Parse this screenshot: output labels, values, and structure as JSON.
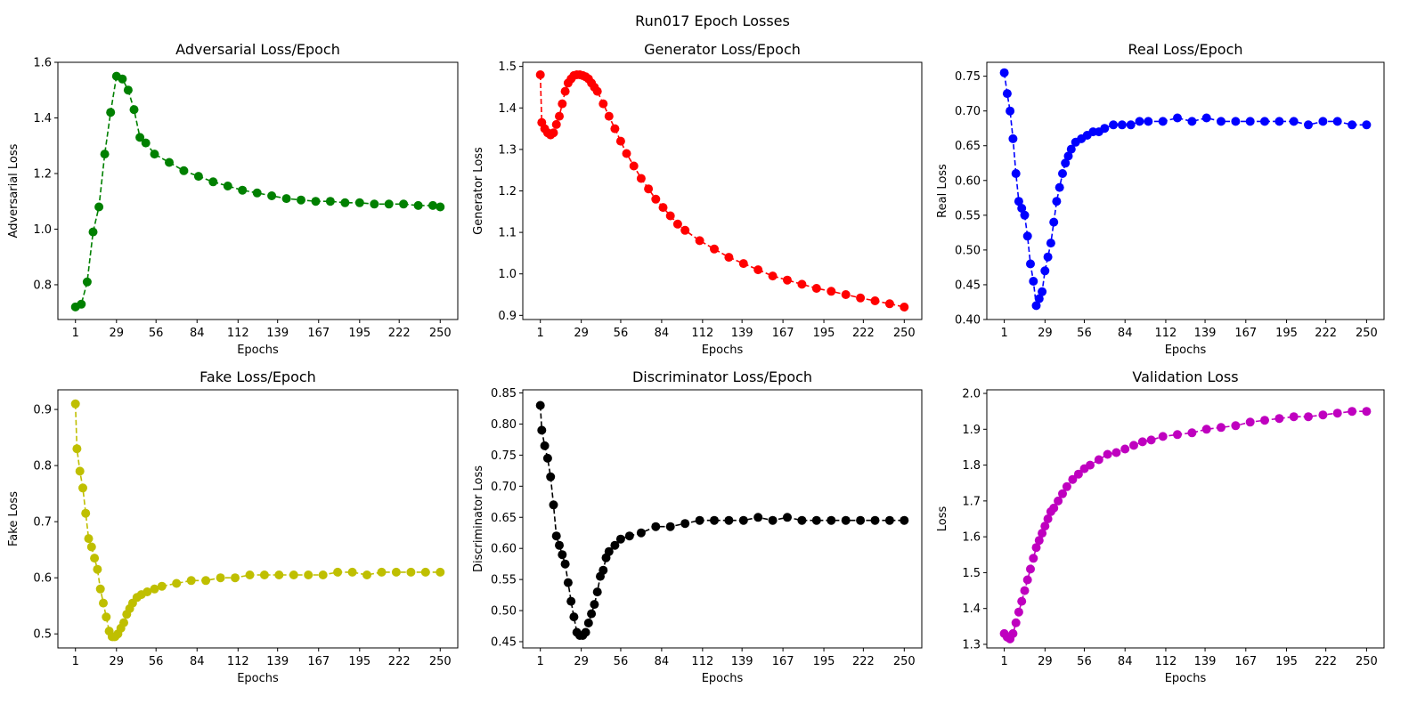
{
  "figure": {
    "suptitle": "Run017 Epoch Losses"
  },
  "chart_data": [
    {
      "type": "line",
      "title": "Adversarial Loss/Epoch",
      "xlabel": "Epochs",
      "ylabel": "Adversarial Loss",
      "color": "#008000",
      "line_style": "dashed",
      "marker": "circle",
      "xlim": [
        -11,
        262
      ],
      "ylim": [
        0.675,
        1.6
      ],
      "xticks": [
        1,
        29,
        56,
        84,
        112,
        139,
        167,
        195,
        222,
        250
      ],
      "yticks": [
        0.8,
        1.0,
        1.2,
        1.4,
        1.6
      ],
      "ytick_labels": [
        "0.8",
        "1.0",
        "1.2",
        "1.4",
        "1.6"
      ],
      "series": [
        {
          "x": [
            1,
            5,
            9,
            13,
            17,
            21,
            25,
            29,
            33,
            37,
            41,
            45,
            49,
            55,
            65,
            75,
            85,
            95,
            105,
            115,
            125,
            135,
            145,
            155,
            165,
            175,
            185,
            195,
            205,
            215,
            225,
            235,
            245,
            250
          ],
          "values": [
            0.72,
            0.73,
            0.81,
            0.99,
            1.08,
            1.27,
            1.42,
            1.55,
            1.54,
            1.5,
            1.43,
            1.33,
            1.31,
            1.27,
            1.24,
            1.21,
            1.19,
            1.17,
            1.155,
            1.14,
            1.13,
            1.12,
            1.11,
            1.105,
            1.1,
            1.1,
            1.095,
            1.095,
            1.09,
            1.09,
            1.09,
            1.085,
            1.085,
            1.08
          ]
        }
      ]
    },
    {
      "type": "line",
      "title": "Generator Loss/Epoch",
      "xlabel": "Epochs",
      "ylabel": "Generator Loss",
      "color": "#ff0000",
      "line_style": "dashed",
      "marker": "circle",
      "xlim": [
        -11,
        262
      ],
      "ylim": [
        0.89,
        1.51
      ],
      "xticks": [
        1,
        29,
        56,
        84,
        112,
        139,
        167,
        195,
        222,
        250
      ],
      "yticks": [
        0.9,
        1.0,
        1.1,
        1.2,
        1.3,
        1.4,
        1.5
      ],
      "ytick_labels": [
        "0.9",
        "1.0",
        "1.1",
        "1.2",
        "1.3",
        "1.4",
        "1.5"
      ],
      "series": [
        {
          "x": [
            1,
            2,
            4,
            6,
            8,
            10,
            12,
            14,
            16,
            18,
            20,
            22,
            24,
            26,
            28,
            30,
            32,
            34,
            36,
            38,
            40,
            44,
            48,
            52,
            56,
            60,
            65,
            70,
            75,
            80,
            85,
            90,
            95,
            100,
            110,
            120,
            130,
            140,
            150,
            160,
            170,
            180,
            190,
            200,
            210,
            220,
            230,
            240,
            250
          ],
          "values": [
            1.48,
            1.365,
            1.35,
            1.34,
            1.335,
            1.34,
            1.36,
            1.38,
            1.41,
            1.44,
            1.46,
            1.47,
            1.478,
            1.48,
            1.48,
            1.478,
            1.475,
            1.47,
            1.46,
            1.45,
            1.44,
            1.41,
            1.38,
            1.35,
            1.32,
            1.29,
            1.26,
            1.23,
            1.205,
            1.18,
            1.16,
            1.14,
            1.12,
            1.105,
            1.08,
            1.06,
            1.04,
            1.025,
            1.01,
            0.995,
            0.985,
            0.975,
            0.965,
            0.958,
            0.95,
            0.942,
            0.935,
            0.928,
            0.92
          ]
        }
      ]
    },
    {
      "type": "line",
      "title": "Real Loss/Epoch",
      "xlabel": "Epochs",
      "ylabel": "Real Loss",
      "color": "#0000ff",
      "line_style": "dashed",
      "marker": "circle",
      "xlim": [
        -11,
        262
      ],
      "ylim": [
        0.4,
        0.77
      ],
      "xticks": [
        1,
        29,
        56,
        84,
        112,
        139,
        167,
        195,
        222,
        250
      ],
      "yticks": [
        0.4,
        0.45,
        0.5,
        0.55,
        0.6,
        0.65,
        0.7,
        0.75
      ],
      "ytick_labels": [
        "0.40",
        "0.45",
        "0.50",
        "0.55",
        "0.60",
        "0.65",
        "0.70",
        "0.75"
      ],
      "series": [
        {
          "x": [
            1,
            3,
            5,
            7,
            9,
            11,
            13,
            15,
            17,
            19,
            21,
            23,
            25,
            27,
            29,
            31,
            33,
            35,
            37,
            39,
            41,
            43,
            45,
            47,
            50,
            54,
            58,
            62,
            66,
            70,
            76,
            82,
            88,
            94,
            100,
            110,
            120,
            130,
            140,
            150,
            160,
            170,
            180,
            190,
            200,
            210,
            220,
            230,
            240,
            250
          ],
          "values": [
            0.755,
            0.725,
            0.7,
            0.66,
            0.61,
            0.57,
            0.56,
            0.55,
            0.52,
            0.48,
            0.455,
            0.42,
            0.43,
            0.44,
            0.47,
            0.49,
            0.51,
            0.54,
            0.57,
            0.59,
            0.61,
            0.625,
            0.635,
            0.645,
            0.655,
            0.66,
            0.665,
            0.67,
            0.67,
            0.675,
            0.68,
            0.68,
            0.68,
            0.685,
            0.685,
            0.685,
            0.69,
            0.685,
            0.69,
            0.685,
            0.685,
            0.685,
            0.685,
            0.685,
            0.685,
            0.68,
            0.685,
            0.685,
            0.68,
            0.68
          ]
        }
      ]
    },
    {
      "type": "line",
      "title": "Fake Loss/Epoch",
      "xlabel": "Epochs",
      "ylabel": "Fake Loss",
      "color": "#bfbf00",
      "line_style": "dashed",
      "marker": "circle",
      "xlim": [
        -11,
        262
      ],
      "ylim": [
        0.475,
        0.935
      ],
      "xticks": [
        1,
        29,
        56,
        84,
        112,
        139,
        167,
        195,
        222,
        250
      ],
      "yticks": [
        0.5,
        0.6,
        0.7,
        0.8,
        0.9
      ],
      "ytick_labels": [
        "0.5",
        "0.6",
        "0.7",
        "0.8",
        "0.9"
      ],
      "series": [
        {
          "x": [
            1,
            2,
            4,
            6,
            8,
            10,
            12,
            14,
            16,
            18,
            20,
            22,
            24,
            26,
            28,
            30,
            32,
            34,
            36,
            38,
            40,
            43,
            46,
            50,
            55,
            60,
            70,
            80,
            90,
            100,
            110,
            120,
            130,
            140,
            150,
            160,
            170,
            180,
            190,
            200,
            210,
            220,
            230,
            240,
            250
          ],
          "values": [
            0.91,
            0.83,
            0.79,
            0.76,
            0.715,
            0.67,
            0.655,
            0.635,
            0.615,
            0.58,
            0.555,
            0.53,
            0.505,
            0.495,
            0.495,
            0.5,
            0.51,
            0.52,
            0.535,
            0.545,
            0.555,
            0.565,
            0.57,
            0.575,
            0.58,
            0.585,
            0.59,
            0.595,
            0.595,
            0.6,
            0.6,
            0.605,
            0.605,
            0.605,
            0.605,
            0.605,
            0.605,
            0.61,
            0.61,
            0.605,
            0.61,
            0.61,
            0.61,
            0.61,
            0.61
          ]
        }
      ]
    },
    {
      "type": "line",
      "title": "Discriminator Loss/Epoch",
      "xlabel": "Epochs",
      "ylabel": "Discriminator Loss",
      "color": "#000000",
      "line_style": "dashed",
      "marker": "circle",
      "xlim": [
        -11,
        262
      ],
      "ylim": [
        0.44,
        0.855
      ],
      "xticks": [
        1,
        29,
        56,
        84,
        112,
        139,
        167,
        195,
        222,
        250
      ],
      "yticks": [
        0.45,
        0.5,
        0.55,
        0.6,
        0.65,
        0.7,
        0.75,
        0.8,
        0.85
      ],
      "ytick_labels": [
        "0.45",
        "0.50",
        "0.55",
        "0.60",
        "0.65",
        "0.70",
        "0.75",
        "0.80",
        "0.85"
      ],
      "series": [
        {
          "x": [
            1,
            2,
            4,
            6,
            8,
            10,
            12,
            14,
            16,
            18,
            20,
            22,
            24,
            26,
            28,
            30,
            32,
            34,
            36,
            38,
            40,
            42,
            44,
            46,
            48,
            52,
            56,
            62,
            70,
            80,
            90,
            100,
            110,
            120,
            130,
            140,
            150,
            160,
            170,
            180,
            190,
            200,
            210,
            220,
            230,
            240,
            250
          ],
          "values": [
            0.83,
            0.79,
            0.765,
            0.745,
            0.715,
            0.67,
            0.62,
            0.605,
            0.59,
            0.575,
            0.545,
            0.515,
            0.49,
            0.465,
            0.46,
            0.46,
            0.465,
            0.48,
            0.495,
            0.51,
            0.53,
            0.555,
            0.565,
            0.585,
            0.595,
            0.605,
            0.615,
            0.62,
            0.625,
            0.635,
            0.635,
            0.64,
            0.645,
            0.645,
            0.645,
            0.645,
            0.65,
            0.645,
            0.65,
            0.645,
            0.645,
            0.645,
            0.645,
            0.645,
            0.645,
            0.645,
            0.645
          ]
        }
      ]
    },
    {
      "type": "line",
      "title": "Validation Loss",
      "xlabel": "Epochs",
      "ylabel": "Loss",
      "color": "#bf00bf",
      "line_style": "dashed",
      "marker": "circle",
      "xlim": [
        -11,
        262
      ],
      "ylim": [
        1.29,
        2.01
      ],
      "xticks": [
        1,
        29,
        56,
        84,
        112,
        139,
        167,
        195,
        222,
        250
      ],
      "yticks": [
        1.3,
        1.4,
        1.5,
        1.6,
        1.7,
        1.8,
        1.9,
        2.0
      ],
      "ytick_labels": [
        "1.3",
        "1.4",
        "1.5",
        "1.6",
        "1.7",
        "1.8",
        "1.9",
        "2.0"
      ],
      "series": [
        {
          "x": [
            1,
            3,
            5,
            7,
            9,
            11,
            13,
            15,
            17,
            19,
            21,
            23,
            25,
            27,
            29,
            31,
            33,
            35,
            38,
            41,
            44,
            48,
            52,
            56,
            60,
            66,
            72,
            78,
            84,
            90,
            96,
            102,
            110,
            120,
            130,
            140,
            150,
            160,
            170,
            180,
            190,
            200,
            210,
            220,
            230,
            240,
            250
          ],
          "values": [
            1.33,
            1.32,
            1.315,
            1.33,
            1.36,
            1.39,
            1.42,
            1.45,
            1.48,
            1.51,
            1.54,
            1.57,
            1.59,
            1.61,
            1.63,
            1.65,
            1.67,
            1.68,
            1.7,
            1.72,
            1.74,
            1.76,
            1.775,
            1.79,
            1.8,
            1.815,
            1.83,
            1.835,
            1.845,
            1.855,
            1.865,
            1.87,
            1.88,
            1.885,
            1.89,
            1.9,
            1.905,
            1.91,
            1.92,
            1.925,
            1.93,
            1.935,
            1.935,
            1.94,
            1.945,
            1.95,
            1.95
          ]
        }
      ]
    }
  ]
}
